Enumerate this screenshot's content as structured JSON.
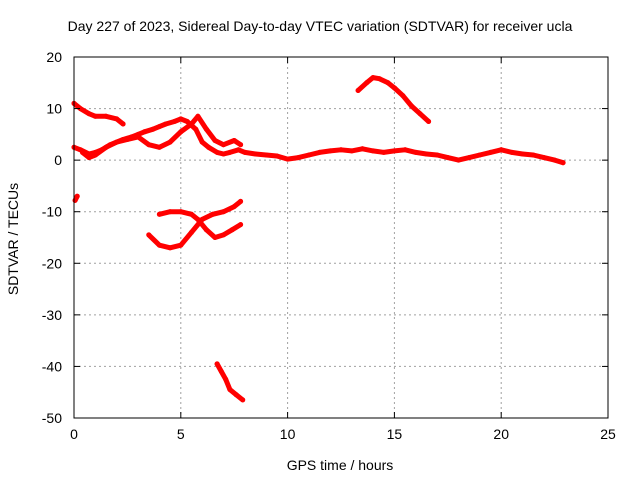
{
  "chart_data": {
    "type": "line",
    "title": "Day 227 of 2023, Sidereal Day-to-day VTEC variation (SDTVAR) for receiver ucla",
    "xlabel": "GPS time / hours",
    "ylabel": "SDTVAR / TECUs",
    "xlim": [
      0,
      25
    ],
    "ylim": [
      -50,
      20
    ],
    "xticks": [
      0,
      5,
      10,
      15,
      20,
      25
    ],
    "yticks": [
      -50,
      -40,
      -30,
      -20,
      -10,
      0,
      10,
      20
    ],
    "grid": true,
    "line_color": "#ff0000",
    "series": [
      {
        "name": "main",
        "x": [
          0.0,
          0.3,
          0.7,
          1.0,
          1.3,
          1.7,
          2.0,
          2.3,
          2.7,
          3.0,
          3.3,
          3.7,
          4.0,
          4.3,
          4.7,
          5.0,
          5.3,
          5.7,
          6.0,
          6.3,
          6.7,
          7.0,
          7.3,
          7.7,
          8.0,
          8.5,
          9.0,
          9.5,
          10.0,
          10.5,
          11.0,
          11.5,
          12.0,
          12.5,
          13.0,
          13.5,
          14.0,
          14.5,
          15.0,
          15.5,
          16.0,
          16.5,
          17.0,
          17.5,
          18.0,
          18.5,
          19.0,
          19.5,
          20.0,
          20.5,
          21.0,
          21.5,
          22.0,
          22.5,
          22.9
        ],
        "y": [
          2.5,
          2.0,
          1.2,
          1.5,
          2.0,
          3.0,
          3.5,
          4.0,
          4.5,
          5.0,
          5.5,
          6.0,
          6.5,
          7.0,
          7.5,
          8.0,
          7.5,
          6.0,
          3.5,
          2.5,
          1.5,
          1.2,
          1.5,
          2.0,
          1.5,
          1.2,
          1.0,
          0.8,
          0.2,
          0.5,
          1.0,
          1.5,
          1.8,
          2.0,
          1.8,
          2.2,
          1.8,
          1.5,
          1.8,
          2.0,
          1.5,
          1.2,
          1.0,
          0.5,
          0.0,
          0.5,
          1.0,
          1.5,
          2.0,
          1.5,
          1.2,
          1.0,
          0.5,
          0.0,
          -0.5
        ]
      },
      {
        "name": "upper-early",
        "x": [
          0.0,
          0.3,
          0.7,
          1.0,
          1.5,
          2.0,
          2.3
        ],
        "y": [
          11.0,
          10.0,
          9.0,
          8.5,
          8.5,
          8.0,
          7.0
        ]
      },
      {
        "name": "lower-bump",
        "x": [
          0.4,
          0.7,
          1.0,
          1.5,
          2.0,
          2.5,
          3.0,
          3.5,
          4.0,
          4.5,
          5.0,
          5.5,
          5.8,
          6.2,
          6.6,
          7.0,
          7.5,
          7.8
        ],
        "y": [
          1.5,
          0.5,
          1.0,
          2.5,
          3.5,
          4.0,
          4.5,
          3.0,
          2.5,
          3.5,
          5.5,
          7.0,
          8.5,
          6.0,
          3.8,
          3.0,
          3.8,
          3.0
        ]
      },
      {
        "name": "peak-15h",
        "x": [
          13.3,
          13.7,
          14.0,
          14.3,
          14.7,
          15.0,
          15.4,
          15.8,
          16.2,
          16.6
        ],
        "y": [
          13.5,
          15.0,
          16.0,
          15.8,
          15.0,
          14.0,
          12.5,
          10.5,
          9.0,
          7.5
        ]
      },
      {
        "name": "point-early",
        "x": [
          0.05,
          0.15
        ],
        "y": [
          -7.8,
          -7.0
        ]
      },
      {
        "name": "neg-loop-a",
        "x": [
          3.5,
          4.0,
          4.5,
          5.0,
          5.5,
          6.0,
          6.5,
          7.0,
          7.5,
          7.8
        ],
        "y": [
          -14.5,
          -16.5,
          -17.0,
          -16.5,
          -14.0,
          -11.5,
          -10.5,
          -10.0,
          -9.0,
          -8.0
        ]
      },
      {
        "name": "neg-loop-b",
        "x": [
          4.0,
          4.5,
          5.0,
          5.5,
          5.8,
          6.2,
          6.6,
          7.0,
          7.4,
          7.8
        ],
        "y": [
          -10.5,
          -10.0,
          -10.0,
          -10.5,
          -11.5,
          -13.5,
          -15.0,
          -14.5,
          -13.5,
          -12.5
        ]
      },
      {
        "name": "neg-tail",
        "x": [
          6.7,
          6.9,
          7.1,
          7.3,
          7.6,
          7.9
        ],
        "y": [
          -39.5,
          -41.0,
          -42.5,
          -44.5,
          -45.5,
          -46.5
        ]
      }
    ]
  }
}
